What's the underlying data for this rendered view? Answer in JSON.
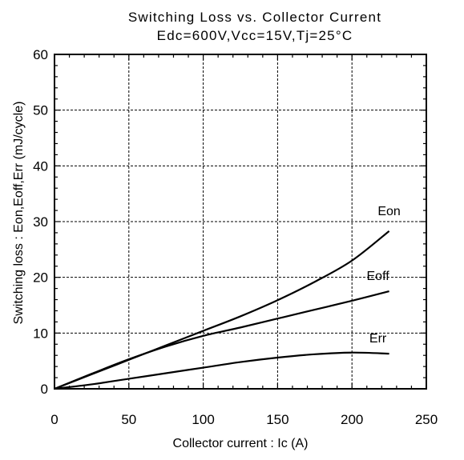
{
  "chart_data": {
    "type": "line",
    "title": "Switching Loss vs. Collector Current",
    "subtitle": "Edc=600V,Vcc=15V,Tj=25°C",
    "xlabel": "Collector current : Ic  (A)",
    "ylabel": "Switching loss : Eon,Eoff,Err  (mJ/cycle)",
    "xlim": [
      0,
      250
    ],
    "ylim": [
      0,
      60
    ],
    "x_ticks": [
      0,
      50,
      100,
      150,
      200,
      250
    ],
    "y_ticks": [
      0,
      10,
      20,
      30,
      40,
      50,
      60
    ],
    "grid": true,
    "series": [
      {
        "name": "Eon",
        "x": [
          0,
          25,
          50,
          75,
          100,
          125,
          150,
          175,
          200,
          225
        ],
        "y": [
          0,
          2.6,
          5.2,
          7.8,
          10.4,
          13.0,
          15.9,
          19.2,
          23.0,
          28.3
        ]
      },
      {
        "name": "Eoff",
        "x": [
          0,
          25,
          50,
          75,
          100,
          125,
          150,
          175,
          200,
          225
        ],
        "y": [
          0,
          2.7,
          5.3,
          7.6,
          9.5,
          11.0,
          12.6,
          14.2,
          15.8,
          17.5
        ]
      },
      {
        "name": "Err",
        "x": [
          0,
          25,
          50,
          75,
          100,
          125,
          150,
          175,
          200,
          225
        ],
        "y": [
          0,
          0.8,
          1.8,
          2.8,
          3.8,
          4.8,
          5.6,
          6.2,
          6.5,
          6.3
        ]
      }
    ]
  }
}
